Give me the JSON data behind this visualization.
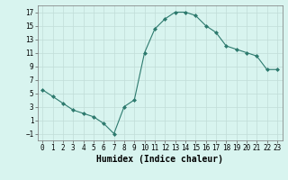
{
  "x": [
    0,
    1,
    2,
    3,
    4,
    5,
    6,
    7,
    8,
    9,
    10,
    11,
    12,
    13,
    14,
    15,
    16,
    17,
    18,
    19,
    20,
    21,
    22,
    23
  ],
  "y": [
    5.5,
    4.5,
    3.5,
    2.5,
    2.0,
    1.5,
    0.5,
    -1.0,
    3.0,
    4.0,
    11.0,
    14.5,
    16.0,
    17.0,
    17.0,
    16.5,
    15.0,
    14.0,
    12.0,
    11.5,
    11.0,
    10.5,
    8.5,
    8.5
  ],
  "line_color": "#2d7a6e",
  "marker": "D",
  "marker_size": 2.0,
  "bg_color": "#d8f4ef",
  "grid_color": "#c0dcd8",
  "xlabel": "Humidex (Indice chaleur)",
  "xlabel_fontsize": 7,
  "ylim": [
    -2,
    18
  ],
  "xlim": [
    -0.5,
    23.5
  ],
  "yticks": [
    -1,
    1,
    3,
    5,
    7,
    9,
    11,
    13,
    15,
    17
  ],
  "xticks": [
    0,
    1,
    2,
    3,
    4,
    5,
    6,
    7,
    8,
    9,
    10,
    11,
    12,
    13,
    14,
    15,
    16,
    17,
    18,
    19,
    20,
    21,
    22,
    23
  ],
  "tick_fontsize": 5.5,
  "linewidth": 0.8
}
